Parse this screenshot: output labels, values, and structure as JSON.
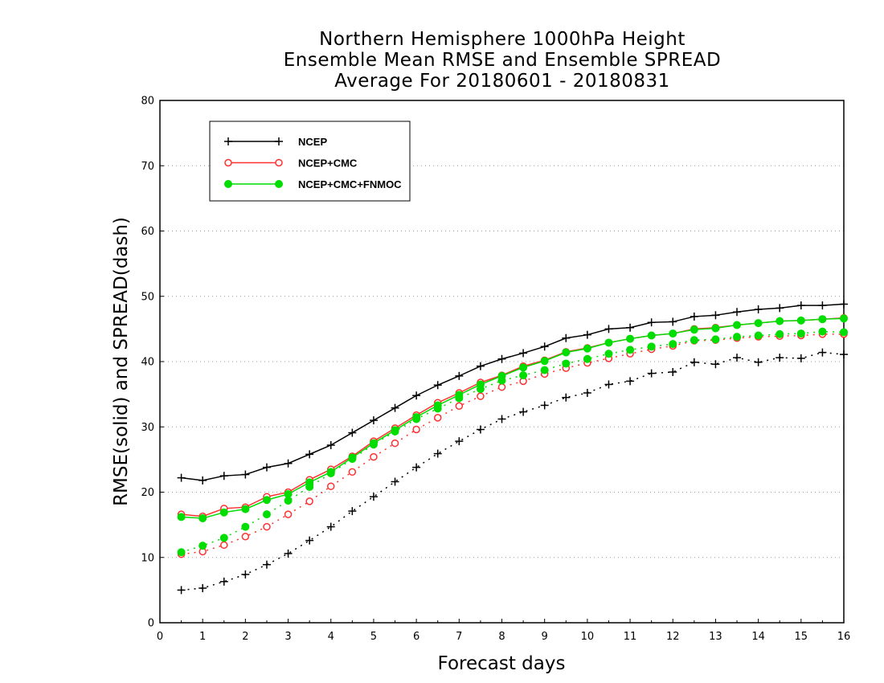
{
  "chart_data": {
    "type": "line",
    "title": [
      "Northern Hemisphere 1000hPa Height",
      "Ensemble Mean RMSE and Ensemble SPREAD",
      "Average For 20180601 - 20180831"
    ],
    "xlabel": "Forecast days",
    "ylabel": "RMSE(solid) and SPREAD(dash)",
    "xlim": [
      0,
      16
    ],
    "ylim": [
      0,
      80
    ],
    "xticks": [
      0,
      1,
      2,
      3,
      4,
      5,
      6,
      7,
      8,
      9,
      10,
      11,
      12,
      13,
      14,
      15,
      16
    ],
    "yticks": [
      0,
      10,
      20,
      30,
      40,
      50,
      60,
      70,
      80
    ],
    "grid": "horizontal dotted",
    "legend_position": "top-left",
    "x": [
      0.5,
      1,
      1.5,
      2,
      2.5,
      3,
      3.5,
      4,
      4.5,
      5,
      5.5,
      6,
      6.5,
      7,
      7.5,
      8,
      8.5,
      9,
      9.5,
      10,
      10.5,
      11,
      11.5,
      12,
      12.5,
      13,
      13.5,
      14,
      14.5,
      15,
      15.5,
      16
    ],
    "series": [
      {
        "name": "NCEP",
        "color": "#000000",
        "marker": "plus",
        "rmse": [
          22.2,
          21.8,
          22.5,
          22.7,
          23.8,
          24.4,
          25.8,
          27.2,
          29.1,
          31.0,
          32.9,
          34.8,
          36.4,
          37.8,
          39.3,
          40.4,
          41.3,
          42.3,
          43.6,
          44.1,
          45.0,
          45.2,
          46.0,
          46.1,
          46.9,
          47.1,
          47.6,
          48.0,
          48.2,
          48.6,
          48.6,
          48.8
        ],
        "spread": [
          5.0,
          5.3,
          6.3,
          7.4,
          8.9,
          10.6,
          12.6,
          14.7,
          17.1,
          19.3,
          21.6,
          23.8,
          25.9,
          27.8,
          29.6,
          31.2,
          32.3,
          33.3,
          34.5,
          35.2,
          36.5,
          37.0,
          38.2,
          38.4,
          39.9,
          39.6,
          40.6,
          39.9,
          40.6,
          40.5,
          41.4,
          41.1
        ]
      },
      {
        "name": "NCEP+CMC",
        "color": "#ff3030",
        "marker": "open-circle",
        "rmse": [
          16.6,
          16.3,
          17.5,
          17.7,
          19.3,
          20.0,
          21.9,
          23.5,
          25.5,
          27.8,
          29.8,
          31.8,
          33.7,
          35.2,
          36.8,
          37.9,
          39.3,
          40.2,
          41.5,
          42.1,
          42.9,
          43.5,
          44.0,
          44.3,
          45.0,
          45.2,
          45.6,
          45.9,
          46.2,
          46.3,
          46.5,
          46.7
        ],
        "spread": [
          10.5,
          10.9,
          11.9,
          13.2,
          14.7,
          16.6,
          18.6,
          20.9,
          23.1,
          25.4,
          27.5,
          29.6,
          31.4,
          33.2,
          34.7,
          36.1,
          37.0,
          38.1,
          39.0,
          39.8,
          40.5,
          41.2,
          41.9,
          42.4,
          43.2,
          43.3,
          43.6,
          43.8,
          43.9,
          44.0,
          44.2,
          44.2
        ]
      },
      {
        "name": "NCEP+CMC+FNMOC",
        "color": "#00dd00",
        "marker": "filled-circle",
        "rmse": [
          16.2,
          16.0,
          16.9,
          17.4,
          18.8,
          19.7,
          21.5,
          23.1,
          25.3,
          27.5,
          29.5,
          31.5,
          33.3,
          34.9,
          36.5,
          37.8,
          39.1,
          40.1,
          41.4,
          42.0,
          42.9,
          43.5,
          44.0,
          44.3,
          44.9,
          45.1,
          45.6,
          45.9,
          46.2,
          46.3,
          46.5,
          46.6
        ],
        "spread": [
          10.8,
          11.8,
          13.0,
          14.7,
          16.6,
          18.7,
          20.8,
          22.9,
          25.1,
          27.3,
          29.3,
          31.2,
          32.8,
          34.4,
          35.8,
          37.1,
          37.9,
          38.7,
          39.7,
          40.4,
          41.2,
          41.8,
          42.3,
          42.7,
          43.3,
          43.4,
          43.8,
          44.0,
          44.2,
          44.3,
          44.6,
          44.5
        ]
      }
    ]
  }
}
